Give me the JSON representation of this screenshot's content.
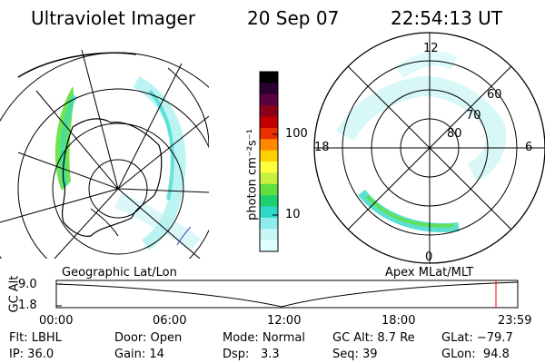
{
  "header": {
    "instrument": "Ultraviolet Imager",
    "date": "20 Sep 07",
    "time": "22:54:13 UT"
  },
  "colorbar": {
    "unit_label": "photon cm⁻²s⁻¹",
    "ticks": [
      "100",
      "10"
    ],
    "colors": [
      "#000000",
      "#2a0030",
      "#5a0040",
      "#8a0018",
      "#c00000",
      "#e83000",
      "#ff8800",
      "#ffd000",
      "#ffff40",
      "#c8f040",
      "#60e040",
      "#20d070",
      "#30d8c8",
      "#90ecec",
      "#c8f6f6",
      "#e0ffff"
    ]
  },
  "left_panel": {
    "label": "Geographic Lat/Lon"
  },
  "right_panel": {
    "label": "Apex MLat/MLT",
    "mlt_labels": {
      "top": "12",
      "left": "18",
      "right": "6",
      "bottom": "0"
    },
    "lat_labels": [
      "60",
      "70",
      "80"
    ]
  },
  "altitude_plot": {
    "ylabel": "GC Alt",
    "yticks": [
      "9.0",
      "1.8"
    ],
    "xticks": [
      "00:00",
      "06:00",
      "12:00",
      "18:00",
      "23:59"
    ],
    "marker_color": "#ff0000"
  },
  "info": {
    "flt": "Flt: LBHL",
    "ip": "IP: 36.0",
    "door": "Door: Open",
    "gain": "Gain: 14",
    "mode": "Mode: Normal",
    "dsp_label": "Dsp:",
    "dsp_value": "3.3",
    "gc_alt": "GC Alt: 8.7 Re",
    "seq": "Seq: 39",
    "glat": "GLat: −79.7",
    "glon": "GLon:  94.8"
  }
}
